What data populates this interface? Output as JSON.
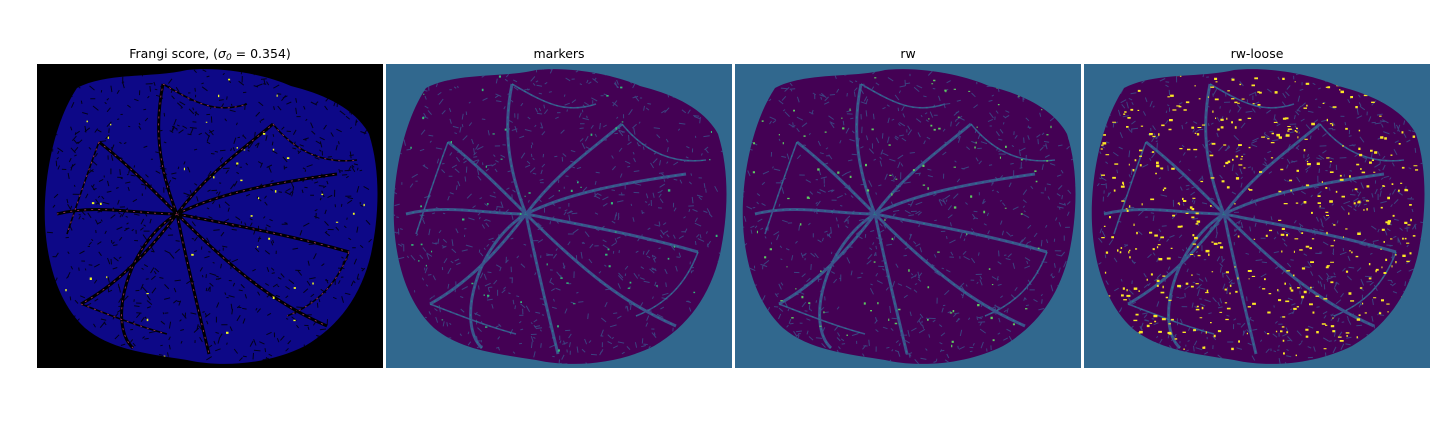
{
  "figure": {
    "panels": [
      {
        "title_prefix": "Frangi score, (",
        "sigma": "σ",
        "sigma_sub": "0",
        "title_suffix": " = 0.354)",
        "colormap": "plasma-like on black",
        "colors": {
          "background": "#000000",
          "tissue": "#0d0887",
          "vessel": "#000000",
          "highlight": "#cc4778",
          "bright": "#f0f921"
        }
      },
      {
        "title": "markers",
        "colormap": "viridis",
        "colors": {
          "background": "#31688e",
          "tissue": "#440154",
          "vessel": "#3b528b",
          "highlight": "#21918c",
          "bright": "#35b779"
        }
      },
      {
        "title": "rw",
        "colormap": "viridis",
        "colors": {
          "background": "#31688e",
          "tissue": "#440154",
          "vessel": "#3b528b",
          "highlight": "#21918c",
          "bright": "#5ec962"
        }
      },
      {
        "title": "rw-loose",
        "colormap": "viridis",
        "colors": {
          "background": "#31688e",
          "tissue": "#440154",
          "vessel": "#3b528b",
          "highlight": "#21918c",
          "bright": "#fde725"
        }
      }
    ]
  }
}
